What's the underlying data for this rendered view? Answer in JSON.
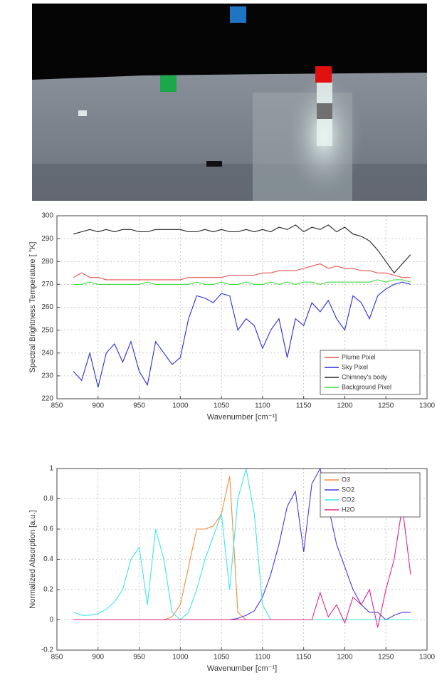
{
  "chart_data": [
    {
      "type": "line",
      "x": [
        870,
        880,
        890,
        900,
        910,
        920,
        930,
        940,
        950,
        960,
        970,
        980,
        990,
        1000,
        1010,
        1020,
        1030,
        1040,
        1050,
        1060,
        1070,
        1080,
        1090,
        1100,
        1110,
        1120,
        1130,
        1140,
        1150,
        1160,
        1170,
        1180,
        1190,
        1200,
        1210,
        1220,
        1230,
        1240,
        1250,
        1260,
        1270,
        1280
      ],
      "series": [
        {
          "name": "Plume Pixel",
          "color": "#e8534f",
          "values": [
            273,
            275,
            273,
            273,
            272,
            272,
            272,
            272,
            272,
            272,
            272,
            272,
            272,
            272,
            273,
            273,
            273,
            273,
            273,
            274,
            274,
            274,
            274,
            275,
            275,
            276,
            276,
            276,
            277,
            278,
            279,
            277,
            278,
            277,
            277,
            276,
            276,
            275,
            275,
            274,
            273,
            273
          ]
        },
        {
          "name": "Sky Pixel",
          "color": "#2c2cd8",
          "values": [
            232,
            228,
            240,
            225,
            240,
            244,
            236,
            245,
            232,
            226,
            245,
            240,
            235,
            238,
            255,
            265,
            264,
            262,
            266,
            265,
            250,
            255,
            252,
            242,
            250,
            255,
            238,
            255,
            252,
            262,
            258,
            263,
            255,
            250,
            265,
            262,
            255,
            265,
            268,
            270,
            271,
            270
          ]
        },
        {
          "name": "Chimney's body",
          "color": "#222222",
          "values": [
            292,
            293,
            294,
            293,
            294,
            293,
            294,
            294,
            293,
            293,
            294,
            294,
            294,
            294,
            293,
            293,
            294,
            293,
            294,
            293,
            293,
            294,
            293,
            294,
            293,
            295,
            294,
            296,
            293,
            295,
            294,
            296,
            293,
            295,
            292,
            291,
            289,
            285,
            280,
            275,
            279,
            283
          ]
        },
        {
          "name": "Background Pixel",
          "color": "#3ddc3d",
          "values": [
            270,
            270,
            271,
            270,
            270,
            270,
            270,
            270,
            270,
            271,
            270,
            270,
            270,
            270,
            270,
            271,
            270,
            270,
            271,
            270,
            270,
            271,
            270,
            270,
            271,
            270,
            271,
            270,
            271,
            271,
            270,
            271,
            271,
            271,
            271,
            271,
            271,
            272,
            271,
            272,
            272,
            271
          ]
        }
      ],
      "xlim": [
        850,
        1300
      ],
      "xticks": [
        850,
        900,
        950,
        1000,
        1050,
        1100,
        1150,
        1200,
        1250,
        1300
      ],
      "ylim": [
        220,
        300
      ],
      "yticks": [
        220,
        230,
        240,
        250,
        260,
        270,
        280,
        290,
        300
      ],
      "x_label": "Wavenumber [cm⁻¹]",
      "y_label": "Spectral Brightness Temperature [ °K]",
      "grid": true,
      "legend": "lower right"
    },
    {
      "type": "line",
      "x": [
        870,
        880,
        890,
        900,
        910,
        920,
        930,
        940,
        950,
        960,
        970,
        980,
        990,
        1000,
        1010,
        1020,
        1030,
        1040,
        1050,
        1060,
        1070,
        1080,
        1090,
        1100,
        1110,
        1120,
        1130,
        1140,
        1150,
        1160,
        1170,
        1180,
        1190,
        1200,
        1210,
        1220,
        1230,
        1240,
        1250,
        1260,
        1270,
        1280
      ],
      "series": [
        {
          "name": "O3",
          "color": "#f08c3c",
          "values": [
            0,
            0,
            0,
            0,
            0,
            0,
            0,
            0,
            0,
            0,
            0,
            0,
            0.02,
            0.1,
            0.35,
            0.6,
            0.6,
            0.62,
            0.7,
            0.95,
            0.05,
            0,
            0,
            0,
            0,
            0,
            0,
            0,
            0,
            0,
            0,
            0,
            0,
            0,
            0,
            0,
            0,
            0,
            0,
            0,
            0,
            0
          ]
        },
        {
          "name": "SO2",
          "color": "#4a3ae0",
          "values": [
            0,
            0,
            0,
            0,
            0,
            0,
            0,
            0,
            0,
            0,
            0,
            0,
            0,
            0,
            0,
            0,
            0,
            0,
            0,
            0,
            0.01,
            0.03,
            0.06,
            0.15,
            0.3,
            0.5,
            0.75,
            0.85,
            0.45,
            0.9,
            1,
            0.75,
            0.5,
            0.35,
            0.2,
            0.1,
            0.05,
            0.05,
            0,
            0.03,
            0.05,
            0.05
          ]
        },
        {
          "name": "CO2",
          "color": "#3ee6e6",
          "values": [
            0.05,
            0.03,
            0.03,
            0.04,
            0.07,
            0.12,
            0.2,
            0.4,
            0.48,
            0.1,
            0.6,
            0.4,
            0.05,
            0,
            0.05,
            0.2,
            0.4,
            0.55,
            0.7,
            0.2,
            0.8,
            1,
            0.7,
            0.1,
            0,
            0,
            0,
            0,
            0,
            0,
            0,
            0,
            0,
            0,
            0,
            0,
            0,
            0,
            0,
            0,
            0,
            0
          ]
        },
        {
          "name": "H2O",
          "color": "#e0288c",
          "values": [
            0,
            0,
            0,
            0,
            0,
            0,
            0,
            0,
            0,
            0,
            0,
            0,
            0,
            0,
            0,
            0,
            0,
            0,
            0,
            0,
            0,
            0,
            0,
            0,
            0,
            0,
            0,
            0,
            0,
            0,
            0.18,
            0.02,
            0.1,
            -0.02,
            0.15,
            0.1,
            0.2,
            -0.05,
            0.2,
            0.4,
            0.75,
            0.3
          ]
        }
      ],
      "xlim": [
        850,
        1300
      ],
      "xticks": [
        850,
        900,
        950,
        1000,
        1050,
        1100,
        1150,
        1200,
        1250,
        1300
      ],
      "ylim": [
        -0.2,
        1
      ],
      "yticks": [
        -0.2,
        0,
        0.2,
        0.4,
        0.6,
        0.8,
        1
      ],
      "x_label": "Wavenumber [cm⁻¹]",
      "y_label": "Normalized Absorption [a.u.]",
      "grid": true,
      "legend": "upper right"
    }
  ]
}
